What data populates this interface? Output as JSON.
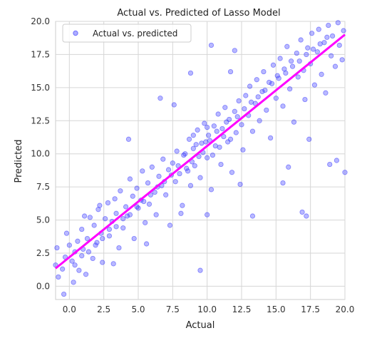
{
  "chart_data": {
    "type": "scatter",
    "title": "Actual vs. Predicted of Lasso Model",
    "xlabel": "Actual",
    "ylabel": "Predicted",
    "xlim": [
      -1.0,
      20.0
    ],
    "ylim": [
      -1.0,
      20.0
    ],
    "xticks": [
      0.0,
      2.5,
      5.0,
      7.5,
      10.0,
      12.5,
      15.0,
      17.5,
      20.0
    ],
    "yticks": [
      0.0,
      2.5,
      5.0,
      7.5,
      10.0,
      12.5,
      15.0,
      17.5,
      20.0
    ],
    "xtick_labels": [
      "0.0",
      "2.5",
      "5.0",
      "7.5",
      "10.0",
      "12.5",
      "15.0",
      "17.5",
      "20.0"
    ],
    "ytick_labels": [
      "0.0",
      "2.5",
      "5.0",
      "7.5",
      "10.0",
      "12.5",
      "15.0",
      "17.5",
      "20.0"
    ],
    "grid": true,
    "legend": {
      "placement": "top-left",
      "entries": [
        "Actual vs. predicted"
      ]
    },
    "series": [
      {
        "name": "Actual vs. predicted",
        "kind": "scatter",
        "color": "#3333ff",
        "points": [
          [
            -1.0,
            1.6
          ],
          [
            -0.8,
            0.7
          ],
          [
            -0.9,
            2.9
          ],
          [
            -0.5,
            1.3
          ],
          [
            -0.3,
            2.2
          ],
          [
            -0.4,
            -0.6
          ],
          [
            -0.2,
            4.0
          ],
          [
            0.0,
            3.1
          ],
          [
            0.2,
            1.9
          ],
          [
            0.3,
            0.3
          ],
          [
            0.4,
            2.6
          ],
          [
            0.6,
            3.4
          ],
          [
            0.7,
            1.2
          ],
          [
            0.9,
            4.3
          ],
          [
            1.0,
            2.8
          ],
          [
            1.2,
            0.9
          ],
          [
            1.3,
            3.6
          ],
          [
            1.5,
            5.2
          ],
          [
            1.7,
            2.1
          ],
          [
            1.8,
            4.6
          ],
          [
            2.0,
            3.3
          ],
          [
            2.1,
            5.8
          ],
          [
            2.3,
            4.0
          ],
          [
            2.4,
            1.8
          ],
          [
            2.6,
            5.1
          ],
          [
            2.8,
            6.3
          ],
          [
            2.9,
            3.8
          ],
          [
            3.1,
            4.9
          ],
          [
            3.3,
            6.6
          ],
          [
            3.4,
            5.5
          ],
          [
            3.6,
            2.9
          ],
          [
            3.7,
            7.2
          ],
          [
            3.9,
            4.4
          ],
          [
            4.1,
            6.0
          ],
          [
            4.2,
            5.3
          ],
          [
            4.4,
            8.1
          ],
          [
            4.6,
            6.8
          ],
          [
            4.7,
            3.6
          ],
          [
            4.9,
            7.4
          ],
          [
            5.0,
            5.9
          ],
          [
            5.2,
            6.5
          ],
          [
            5.3,
            8.7
          ],
          [
            5.5,
            4.8
          ],
          [
            5.7,
            7.8
          ],
          [
            5.8,
            6.2
          ],
          [
            6.0,
            9.0
          ],
          [
            6.2,
            7.1
          ],
          [
            6.3,
            5.4
          ],
          [
            6.5,
            8.3
          ],
          [
            6.7,
            7.6
          ],
          [
            6.8,
            9.6
          ],
          [
            7.0,
            6.9
          ],
          [
            7.2,
            8.8
          ],
          [
            7.3,
            4.6
          ],
          [
            7.5,
            9.3
          ],
          [
            7.7,
            7.9
          ],
          [
            7.8,
            10.2
          ],
          [
            8.0,
            8.5
          ],
          [
            8.2,
            6.1
          ],
          [
            8.3,
            9.9
          ],
          [
            8.5,
            8.9
          ],
          [
            8.7,
            11.1
          ],
          [
            8.8,
            7.6
          ],
          [
            9.0,
            10.4
          ],
          [
            9.1,
            9.1
          ],
          [
            9.3,
            11.8
          ],
          [
            9.5,
            8.2
          ],
          [
            9.6,
            10.8
          ],
          [
            9.8,
            12.3
          ],
          [
            10.0,
            9.7
          ],
          [
            10.1,
            11.4
          ],
          [
            10.3,
            7.3
          ],
          [
            10.5,
            12.1
          ],
          [
            10.6,
            10.6
          ],
          [
            10.8,
            13.0
          ],
          [
            11.0,
            9.2
          ],
          [
            11.1,
            11.9
          ],
          [
            11.3,
            13.5
          ],
          [
            11.5,
            10.9
          ],
          [
            11.6,
            12.6
          ],
          [
            11.8,
            8.6
          ],
          [
            12.0,
            13.2
          ],
          [
            12.1,
            11.6
          ],
          [
            12.3,
            14.0
          ],
          [
            12.5,
            12.2
          ],
          [
            12.6,
            10.3
          ],
          [
            12.8,
            14.4
          ],
          [
            13.0,
            12.9
          ],
          [
            13.1,
            15.1
          ],
          [
            13.3,
            11.7
          ],
          [
            13.5,
            13.8
          ],
          [
            13.6,
            15.6
          ],
          [
            13.8,
            12.5
          ],
          [
            14.0,
            14.7
          ],
          [
            14.1,
            16.2
          ],
          [
            14.3,
            13.3
          ],
          [
            14.5,
            15.4
          ],
          [
            14.6,
            11.2
          ],
          [
            14.8,
            16.7
          ],
          [
            15.0,
            14.2
          ],
          [
            15.1,
            15.9
          ],
          [
            15.3,
            17.2
          ],
          [
            15.5,
            13.6
          ],
          [
            15.6,
            16.4
          ],
          [
            15.8,
            18.1
          ],
          [
            16.0,
            14.9
          ],
          [
            16.1,
            17.0
          ],
          [
            16.3,
            12.4
          ],
          [
            16.5,
            17.6
          ],
          [
            16.6,
            15.8
          ],
          [
            16.8,
            18.6
          ],
          [
            17.0,
            16.3
          ],
          [
            17.1,
            14.1
          ],
          [
            17.3,
            18.0
          ],
          [
            17.5,
            16.8
          ],
          [
            17.6,
            19.1
          ],
          [
            17.8,
            15.2
          ],
          [
            18.0,
            17.7
          ],
          [
            18.1,
            19.4
          ],
          [
            18.3,
            16.0
          ],
          [
            18.5,
            18.4
          ],
          [
            18.6,
            14.6
          ],
          [
            18.8,
            19.7
          ],
          [
            19.0,
            17.4
          ],
          [
            19.1,
            18.9
          ],
          [
            19.3,
            16.6
          ],
          [
            19.5,
            19.9
          ],
          [
            19.6,
            18.2
          ],
          [
            19.8,
            17.1
          ],
          [
            19.9,
            19.3
          ],
          [
            10.2,
            11.0
          ],
          [
            9.7,
            10.1
          ],
          [
            10.7,
            11.7
          ],
          [
            9.4,
            9.8
          ],
          [
            10.9,
            10.5
          ],
          [
            11.2,
            11.3
          ],
          [
            9.9,
            10.9
          ],
          [
            10.4,
            9.9
          ],
          [
            8.9,
            9.4
          ],
          [
            11.4,
            12.4
          ],
          [
            8.6,
            8.7
          ],
          [
            11.7,
            11.1
          ],
          [
            9.2,
            10.7
          ],
          [
            10.0,
            12.0
          ],
          [
            9.0,
            11.4
          ],
          [
            8.4,
            10.0
          ],
          [
            12.2,
            12.8
          ],
          [
            7.9,
            9.1
          ],
          [
            12.7,
            13.4
          ],
          [
            7.4,
            8.4
          ],
          [
            6.9,
            7.9
          ],
          [
            6.4,
            7.5
          ],
          [
            5.9,
            6.9
          ],
          [
            5.4,
            6.4
          ],
          [
            4.9,
            6.0
          ],
          [
            4.4,
            5.4
          ],
          [
            3.9,
            5.1
          ],
          [
            3.4,
            4.5
          ],
          [
            2.9,
            4.3
          ],
          [
            2.4,
            3.6
          ],
          [
            1.9,
            3.1
          ],
          [
            1.4,
            2.6
          ],
          [
            0.9,
            2.3
          ],
          [
            0.4,
            1.6
          ],
          [
            13.2,
            13.9
          ],
          [
            13.7,
            14.3
          ],
          [
            14.2,
            14.8
          ],
          [
            14.7,
            15.3
          ],
          [
            15.2,
            15.7
          ],
          [
            15.7,
            16.1
          ],
          [
            16.2,
            16.6
          ],
          [
            16.7,
            17.0
          ],
          [
            17.2,
            17.5
          ],
          [
            17.7,
            17.9
          ],
          [
            18.2,
            18.3
          ],
          [
            18.7,
            18.8
          ],
          [
            3.2,
            1.7
          ],
          [
            5.6,
            3.2
          ],
          [
            8.1,
            5.5
          ],
          [
            10.0,
            5.4
          ],
          [
            12.4,
            7.7
          ],
          [
            15.9,
            9.0
          ],
          [
            17.4,
            11.1
          ],
          [
            18.9,
            9.2
          ],
          [
            20.0,
            8.6
          ],
          [
            9.5,
            1.2
          ],
          [
            17.2,
            5.3
          ],
          [
            6.6,
            14.2
          ],
          [
            8.8,
            16.1
          ],
          [
            10.3,
            18.2
          ],
          [
            4.3,
            11.1
          ],
          [
            16.9,
            5.6
          ],
          [
            13.3,
            5.3
          ],
          [
            7.6,
            13.7
          ],
          [
            19.4,
            9.5
          ],
          [
            15.5,
            7.8
          ],
          [
            1.1,
            5.3
          ],
          [
            2.2,
            6.1
          ],
          [
            11.7,
            16.2
          ],
          [
            12.0,
            17.8
          ]
        ]
      },
      {
        "name": "",
        "kind": "line",
        "color": "#ff00ff",
        "points": [
          [
            -1.0,
            1.35
          ],
          [
            20.0,
            19.0
          ]
        ]
      }
    ]
  }
}
